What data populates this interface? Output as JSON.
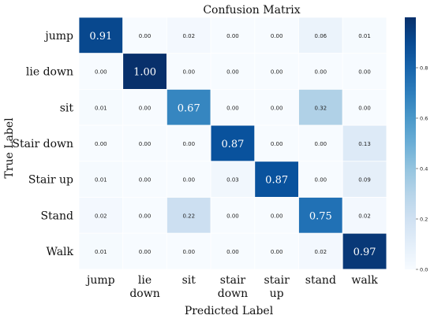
{
  "chart_data": {
    "type": "heatmap",
    "title": "Confusion Matrix",
    "xlabel": "Predicted Label",
    "ylabel": "True Label",
    "row_labels": [
      "jump",
      "lie down",
      "sit",
      "Stair down",
      "Stair up",
      "Stand",
      "Walk"
    ],
    "col_labels": [
      [
        "jump"
      ],
      [
        "lie",
        "down"
      ],
      [
        "sit"
      ],
      [
        "stair",
        "down"
      ],
      [
        "stair",
        "up"
      ],
      [
        "stand"
      ],
      [
        "walk"
      ]
    ],
    "values": [
      [
        0.91,
        0.0,
        0.02,
        0.0,
        0.0,
        0.06,
        0.01
      ],
      [
        0.0,
        1.0,
        0.0,
        0.0,
        0.0,
        0.0,
        0.0
      ],
      [
        0.01,
        0.0,
        0.67,
        0.0,
        0.0,
        0.32,
        0.0
      ],
      [
        0.0,
        0.0,
        0.0,
        0.87,
        0.0,
        0.0,
        0.13
      ],
      [
        0.01,
        0.0,
        0.0,
        0.03,
        0.87,
        0.0,
        0.09
      ],
      [
        0.02,
        0.0,
        0.22,
        0.0,
        0.0,
        0.75,
        0.02
      ],
      [
        0.01,
        0.0,
        0.0,
        0.0,
        0.0,
        0.02,
        0.97
      ]
    ],
    "colorbar": {
      "range": [
        0,
        1
      ],
      "ticks": [
        "0.0",
        "0.2",
        "0.4",
        "0.6",
        "0.8"
      ],
      "colormap": "Blues"
    }
  }
}
